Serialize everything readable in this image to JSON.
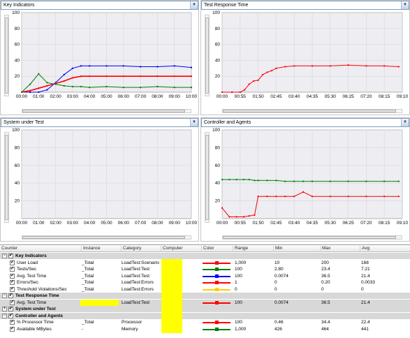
{
  "panels": [
    {
      "title": "Key Indicators"
    },
    {
      "title": "Test Response Time"
    },
    {
      "title": "System under Test"
    },
    {
      "title": "Controller and Agents"
    }
  ],
  "axis": {
    "y_ticks": [
      "100",
      "80",
      "60",
      "40",
      "20"
    ],
    "x_ticks_full": [
      "00:00",
      "01:00",
      "02:00",
      "03:00",
      "04:00",
      "05:00",
      "06:00",
      "07:00",
      "08:00",
      "09:00",
      "10:00"
    ],
    "x_ticks_short": [
      "00:00",
      "00:55",
      "01:50",
      "02:45",
      "03:40",
      "04:35",
      "05:30",
      "06:25",
      "07:20",
      "08:15",
      "09:10"
    ]
  },
  "colors": {
    "red": "#ff0000",
    "blue": "#0000ff",
    "green": "#008000",
    "yellow": "#ffcc00",
    "highlight": "#ffff00"
  },
  "chart_data": [
    {
      "type": "line",
      "title": "Key Indicators",
      "ylim": [
        0,
        100
      ],
      "x": [
        0,
        0.5,
        1,
        1.5,
        2,
        2.5,
        3,
        3.5,
        4,
        5,
        6,
        7,
        8,
        9,
        10
      ],
      "series": [
        {
          "color": "blue",
          "values": [
            0,
            0,
            0,
            3,
            12,
            22,
            30,
            33,
            33,
            33,
            33,
            32,
            32,
            33,
            31
          ]
        },
        {
          "color": "red",
          "values": [
            0,
            2,
            5,
            8,
            11,
            14,
            18,
            20,
            20,
            20,
            20,
            20,
            20,
            20,
            20
          ]
        },
        {
          "color": "green",
          "values": [
            0,
            10,
            23,
            12,
            10,
            8,
            7,
            7,
            6,
            7,
            6,
            6,
            7,
            6,
            6
          ]
        }
      ]
    },
    {
      "type": "line",
      "title": "Test Response Time",
      "ylim": [
        0,
        100
      ],
      "x": [
        0,
        0.55,
        1,
        1.25,
        1.5,
        1.75,
        2,
        2.25,
        2.5,
        2.75,
        3,
        3.5,
        4,
        5,
        6,
        7,
        8,
        9,
        9.8
      ],
      "series": [
        {
          "color": "red",
          "values": [
            0,
            0,
            0,
            3,
            10,
            14,
            15,
            22,
            25,
            27,
            30,
            32,
            33,
            33,
            33,
            34,
            33,
            33,
            32
          ]
        }
      ]
    },
    {
      "type": "line",
      "title": "System under Test",
      "ylim": [
        0,
        100
      ],
      "series": []
    },
    {
      "type": "line",
      "title": "Controller and Agents",
      "ylim": [
        0,
        100
      ],
      "x": [
        0,
        0.4,
        0.8,
        1.2,
        1.5,
        1.8,
        2,
        2.5,
        3,
        3.5,
        4,
        4.5,
        5,
        6,
        7,
        8,
        9,
        9.8
      ],
      "series": [
        {
          "color": "green",
          "values": [
            44,
            44,
            44,
            44,
            44,
            43,
            43,
            43,
            43,
            42,
            42,
            42,
            42,
            42,
            42,
            42,
            42,
            42
          ]
        },
        {
          "color": "red",
          "values": [
            12,
            2,
            2,
            2,
            3,
            4,
            25,
            25,
            25,
            25,
            25,
            30,
            25,
            25,
            25,
            25,
            25,
            25
          ]
        }
      ]
    }
  ],
  "table": {
    "headers": [
      "Counter",
      "Instance",
      "Category",
      "Computer",
      "Color",
      "Range",
      "Min",
      "Max",
      "Avg"
    ],
    "rows": [
      {
        "kind": "group",
        "label": "Key Indicators",
        "toggle": "−"
      },
      {
        "kind": "item",
        "counter": "User Load",
        "instance": "_Total",
        "category": "LoadTest:Scenario",
        "color": "#ff0000",
        "range": "1,000",
        "min": "10",
        "max": "200",
        "avg": "168"
      },
      {
        "kind": "item",
        "counter": "Tests/Sec",
        "instance": "_Total",
        "category": "LoadTest:Test",
        "color": "#008000",
        "range": "100",
        "min": "2.80",
        "max": "23.4",
        "avg": "7.21"
      },
      {
        "kind": "item",
        "counter": "Avg. Test Time",
        "instance": "_Total",
        "category": "LoadTest:Test",
        "color": "#0000ff",
        "range": "100",
        "min": "0.0074",
        "max": "36.5",
        "avg": "21.4"
      },
      {
        "kind": "item",
        "counter": "Errors/Sec",
        "instance": "_Total",
        "category": "LoadTest:Errors",
        "color": "#ff0000",
        "range": "1",
        "min": "0",
        "max": "0.20",
        "avg": "0.0033"
      },
      {
        "kind": "item",
        "counter": "Threshold Violations/Sec",
        "instance": "_Total",
        "category": "LoadTest:Errors",
        "color": "#ffcc00",
        "range": "0",
        "min": "0",
        "max": "0",
        "avg": "0"
      },
      {
        "kind": "group",
        "label": "Test Response Time",
        "toggle": "−"
      },
      {
        "kind": "item",
        "counter": "Avg. Test Time",
        "instance": "",
        "category": "LoadTest:Test",
        "color": "#ff0000",
        "range": "100",
        "min": "0.0074",
        "max": "36.5",
        "avg": "21.4",
        "sel": true
      },
      {
        "kind": "group",
        "label": "System under Test",
        "toggle": "+"
      },
      {
        "kind": "group",
        "label": "Controller and Agents",
        "toggle": "−"
      },
      {
        "kind": "item",
        "counter": "% Processor Time",
        "instance": "_Total",
        "category": "Processor",
        "color": "#ff0000",
        "range": "100",
        "min": "0.46",
        "max": "34.4",
        "avg": "22.4"
      },
      {
        "kind": "item",
        "counter": "Available MBytes",
        "instance": "-",
        "category": "Memory",
        "color": "#008000",
        "range": "1,000",
        "min": "426",
        "max": "464",
        "avg": "441"
      }
    ]
  }
}
